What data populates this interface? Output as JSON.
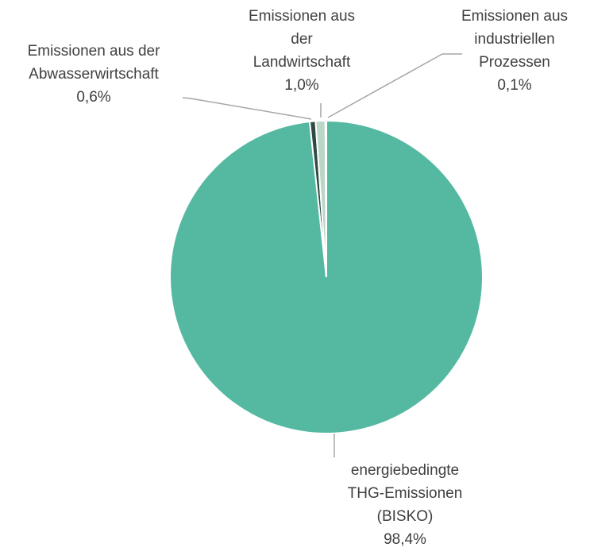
{
  "chart_data": {
    "type": "pie",
    "categories": [
      "energiebedingte THG-Emissionen (BISKO)",
      "Emissionen aus der Abwasserwirtschaft",
      "Emissionen aus der Landwirtschaft",
      "Emissionen aus industriellen Prozessen"
    ],
    "values": [
      98.4,
      0.6,
      1.0,
      0.1
    ],
    "value_labels": [
      "98,4%",
      "0,6%",
      "1,0%",
      "0,1%"
    ],
    "colors": [
      "#55b9a2",
      "#2e4a43",
      "#b9d6c6",
      "#8fb5a5"
    ]
  }
}
